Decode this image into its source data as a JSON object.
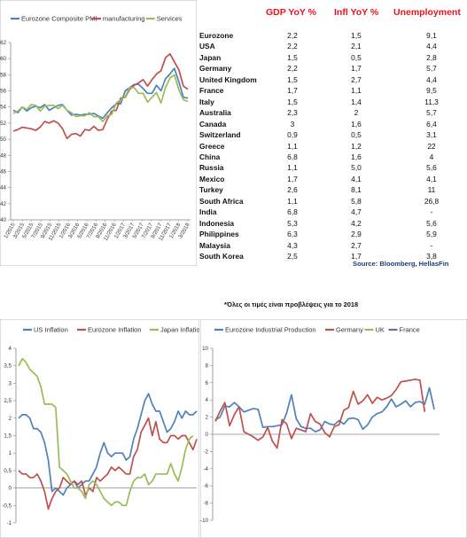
{
  "table": {
    "headers": [
      "GDP YoY %",
      "Infl YoY %",
      "Unemployment"
    ],
    "header_color": "#e8141b",
    "rows": [
      {
        "country": "Eurozone",
        "gdp": "2,2",
        "infl": "1,5",
        "unemp": "9,1"
      },
      {
        "country": "USA",
        "gdp": "2,2",
        "infl": "2,1",
        "unemp": "4,4"
      },
      {
        "country": "Japan",
        "gdp": "1,5",
        "infl": "0,5",
        "unemp": "2,8"
      },
      {
        "country": "Germany",
        "gdp": "2,2",
        "infl": "1,7",
        "unemp": "5,7"
      },
      {
        "country": "United Kingdom",
        "gdp": "1,5",
        "infl": "2,7",
        "unemp": "4,4"
      },
      {
        "country": "France",
        "gdp": "1,7",
        "infl": "1,1",
        "unemp": "9,5"
      },
      {
        "country": "Italy",
        "gdp": "1,5",
        "infl": "1,4",
        "unemp": "11,3"
      },
      {
        "country": "Australia",
        "gdp": "2,3",
        "infl": "2",
        "unemp": "5,7"
      },
      {
        "country": "Canada",
        "gdp": "3",
        "infl": "1,6",
        "unemp": "6,4"
      },
      {
        "country": "Switzerland",
        "gdp": "0,9",
        "infl": "0,5",
        "unemp": "3,1"
      },
      {
        "country": "Greece",
        "gdp": "1,1",
        "infl": "1,2",
        "unemp": "22"
      },
      {
        "country": "China",
        "gdp": "6,8",
        "infl": "1,6",
        "unemp": "4"
      },
      {
        "country": "Russia",
        "gdp": "1,1",
        "infl": "5,0",
        "unemp": "5,6"
      },
      {
        "country": "Mexico",
        "gdp": "1,7",
        "infl": "4,1",
        "unemp": "4,1"
      },
      {
        "country": "Turkey",
        "gdp": "2,6",
        "infl": "8,1",
        "unemp": "11"
      },
      {
        "country": "South Africa",
        "gdp": "1,1",
        "infl": "5,8",
        "unemp": "26,8"
      },
      {
        "country": "India",
        "gdp": "6,8",
        "infl": "4,7",
        "unemp": "-"
      },
      {
        "country": "Indonesia",
        "gdp": "5,3",
        "infl": "4,2",
        "unemp": "5,6"
      },
      {
        "country": "Philippines",
        "gdp": "6,3",
        "infl": "2,9",
        "unemp": "5,9"
      },
      {
        "country": "Malaysia",
        "gdp": "4,3",
        "infl": "2,7",
        "unemp": "-"
      },
      {
        "country": "South Korea",
        "gdp": "2,5",
        "infl": "1,7",
        "unemp": "3,8"
      }
    ],
    "source": "Source: Bloomberg, HellasFin",
    "note": "*Όλες οι τιμές είναι προβλέψεις για το 2018"
  },
  "chart_data": [
    {
      "type": "line",
      "title": "",
      "ylim": [
        40,
        62
      ],
      "yticks": [
        "62",
        "60",
        "58",
        "56",
        "54",
        "52",
        "50",
        "48",
        "46",
        "44",
        "42",
        "40"
      ],
      "xticks": [
        "1/2015",
        "3/2015",
        "5/2015",
        "7/2015",
        "9/2015",
        "11/2015",
        "1/2016",
        "3/2016",
        "5/2016",
        "7/2016",
        "9/2016",
        "11/2016",
        "1/2017",
        "3/2017",
        "5/2017",
        "7/2017",
        "9/2017",
        "11/2017",
        "1/2018",
        "3/2018"
      ],
      "x": [
        "1/2015",
        "2/2015",
        "3/2015",
        "4/2015",
        "5/2015",
        "6/2015",
        "7/2015",
        "8/2015",
        "9/2015",
        "10/2015",
        "11/2015",
        "12/2015",
        "1/2016",
        "2/2016",
        "3/2016",
        "4/2016",
        "5/2016",
        "6/2016",
        "7/2016",
        "8/2016",
        "9/2016",
        "10/2016",
        "11/2016",
        "12/2016",
        "1/2017",
        "2/2017",
        "3/2017",
        "4/2017",
        "5/2017",
        "6/2017",
        "7/2017",
        "8/2017",
        "9/2017",
        "10/2017",
        "11/2017",
        "12/2017",
        "1/2018",
        "2/2018",
        "3/2018",
        "4/2018"
      ],
      "series": [
        {
          "name": "Eurozone Composite PMI",
          "color": "#4f81bd",
          "values": [
            53.6,
            53.3,
            54.0,
            53.5,
            53.9,
            54.1,
            53.9,
            54.3,
            53.6,
            53.9,
            54.2,
            54.3,
            53.6,
            53.0,
            53.1,
            53.0,
            53.1,
            53.1,
            53.2,
            52.9,
            52.6,
            53.3,
            53.9,
            54.4,
            54.4,
            56.0,
            56.4,
            56.8,
            56.8,
            56.3,
            55.7,
            55.7,
            56.7,
            56.0,
            57.5,
            58.1,
            58.8,
            57.1,
            55.2,
            55.1
          ]
        },
        {
          "name": "manufacturing",
          "color": "#c0504d",
          "values": [
            51.0,
            51.2,
            51.5,
            51.4,
            51.3,
            51.1,
            51.5,
            52.2,
            52.0,
            52.3,
            52.0,
            51.3,
            50.1,
            50.6,
            50.7,
            50.4,
            51.2,
            51.1,
            51.6,
            51.1,
            51.2,
            52.5,
            53.5,
            53.6,
            55.1,
            55.2,
            56.2,
            56.7,
            57.0,
            57.4,
            56.6,
            57.4,
            58.1,
            58.5,
            60.1,
            60.6,
            59.6,
            58.6,
            56.6,
            56.2
          ]
        },
        {
          "name": "Services",
          "color": "#9bbb59",
          "values": [
            53.2,
            53.5,
            54.0,
            53.7,
            54.3,
            54.2,
            53.5,
            54.1,
            54.2,
            54.2,
            53.8,
            54.2,
            53.6,
            53.3,
            52.8,
            52.9,
            52.9,
            53.3,
            52.8,
            52.8,
            52.2,
            52.9,
            53.1,
            54.5,
            54.9,
            55.3,
            56.4,
            56.4,
            55.7,
            55.7,
            54.6,
            55.2,
            55.8,
            54.5,
            56.4,
            57.6,
            58.0,
            56.1,
            54.9,
            54.7
          ]
        }
      ],
      "legend": "top"
    },
    {
      "type": "line",
      "title": "",
      "ylim": [
        -1,
        4
      ],
      "yticks": [
        "4",
        "3,5",
        "3",
        "2,5",
        "2",
        "1,5",
        "1",
        "0,5",
        "0",
        "-0,5",
        "-1"
      ],
      "xticks": [],
      "series": [
        {
          "name": "US Inflation",
          "color": "#4f81bd",
          "values": [
            2.0,
            2.1,
            2.1,
            2.0,
            1.7,
            1.7,
            1.6,
            1.3,
            0.8,
            -0.1,
            0.0,
            -0.1,
            -0.2,
            0.0,
            0.1,
            0.2,
            0.0,
            0.1,
            0.2,
            0.2,
            0.4,
            0.6,
            1.0,
            1.3,
            1.0,
            0.9,
            1.0,
            1.0,
            1.0,
            0.8,
            0.9,
            1.4,
            1.7,
            2.1,
            2.5,
            2.7,
            2.4,
            2.2,
            2.2,
            1.9,
            1.6,
            1.7,
            1.9,
            2.2,
            2.0,
            2.2,
            2.1,
            2.1,
            2.2
          ]
        },
        {
          "name": "Eurozone Inflation",
          "color": "#c0504d",
          "values": [
            0.5,
            0.4,
            0.4,
            0.3,
            0.3,
            0.4,
            0.2,
            -0.1,
            -0.6,
            -0.3,
            -0.1,
            0.0,
            0.3,
            0.2,
            0.1,
            0.2,
            0.1,
            0.2,
            -0.2,
            0.0,
            -0.1,
            0.3,
            0.2,
            0.3,
            0.4,
            0.6,
            0.5,
            0.6,
            0.5,
            0.4,
            0.4,
            0.9,
            1.1,
            1.6,
            1.8,
            2.0,
            1.5,
            1.9,
            1.4,
            1.3,
            1.3,
            1.5,
            1.5,
            1.4,
            1.5,
            1.5,
            1.3,
            1.1,
            1.4
          ]
        },
        {
          "name": "Japan Inflation",
          "color": "#9bbb59",
          "values": [
            3.5,
            3.7,
            3.6,
            3.4,
            3.3,
            3.2,
            2.9,
            2.4,
            2.4,
            2.4,
            2.3,
            0.6,
            0.5,
            0.4,
            0.2,
            0.0,
            0.0,
            -0.1,
            -0.3,
            0.1,
            0.2,
            0.1,
            -0.1,
            -0.3,
            -0.4,
            -0.5,
            -0.4,
            -0.4,
            -0.5,
            -0.5,
            -0.1,
            0.2,
            0.3,
            0.3,
            0.4,
            0.1,
            0.2,
            0.4,
            0.4,
            0.4,
            0.4,
            0.7,
            0.4,
            0.2,
            0.6,
            1.1,
            1.4,
            1.5
          ]
        }
      ],
      "legend": "top"
    },
    {
      "type": "line",
      "title": "",
      "ylim": [
        -10,
        10
      ],
      "yticks": [
        "10",
        "8",
        "6",
        "4",
        "2",
        "0",
        "-2",
        "-4",
        "-6",
        "-8",
        "-10"
      ],
      "xticks": [],
      "series": [
        {
          "name": "Eurozone Industrial Production",
          "color": "#4f81bd",
          "values": [
            1.7,
            2.0,
            3.3,
            3.2,
            3.7,
            3.2,
            2.6,
            2.8,
            3.0,
            2.9,
            0.8,
            0.9,
            0.9,
            1.0,
            1.1,
            2.5,
            4.6,
            1.8,
            0.9,
            0.7,
            0.7,
            0.3,
            0.5,
            1.5,
            1.2,
            1.1,
            1.6,
            1.2,
            1.8,
            1.9,
            1.7,
            0.6,
            1.1,
            2.0,
            2.4,
            2.6,
            3.2,
            4.1,
            3.2,
            3.5,
            3.9,
            3.2,
            3.7,
            3.8,
            3.5,
            5.4,
            2.9
          ]
        },
        {
          "name": "Germany",
          "color": "#c0504d",
          "values": [
            1.5,
            2.7,
            3.7,
            1.0,
            2.3,
            3.2,
            0.3,
            0.0,
            -0.3,
            -0.7,
            -0.3,
            0.8,
            -0.8,
            -1.6,
            1.7,
            1.2,
            -0.5,
            0.7,
            0.5,
            0.3,
            2.4,
            1.5,
            1.2,
            0.2,
            -0.3,
            0.9,
            1.1,
            2.8,
            3.1,
            5.0,
            3.5,
            3.9,
            4.6,
            3.6,
            4.3,
            4.0,
            4.2,
            4.5,
            5.2,
            6.1,
            6.2,
            6.3,
            6.4,
            6.3,
            2.6
          ]
        },
        {
          "name": "UK",
          "color": "#9bbb59",
          "values": []
        },
        {
          "name": "France",
          "color": "#8064a2",
          "values": []
        }
      ],
      "legend": "top"
    }
  ]
}
